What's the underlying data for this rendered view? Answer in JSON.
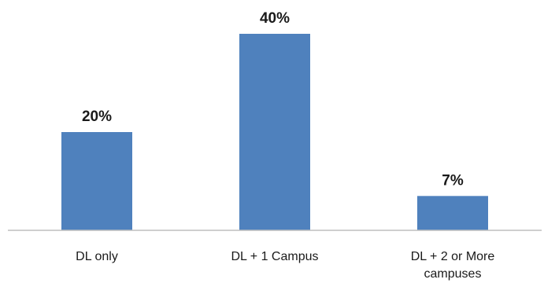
{
  "chart_data": {
    "type": "bar",
    "categories": [
      "DL only",
      "DL + 1 Campus",
      "DL + 2 or More campuses"
    ],
    "category_lines": [
      [
        "DL only"
      ],
      [
        "DL + 1 Campus"
      ],
      [
        "DL + 2 or More",
        "campuses"
      ]
    ],
    "values": [
      20,
      40,
      7
    ],
    "data_labels": [
      "20%",
      "40%",
      "7%"
    ],
    "title": "",
    "xlabel": "",
    "ylabel": "",
    "ylim": [
      0,
      40
    ],
    "grid": false,
    "legend": "none",
    "bar_color": "#4f81bd",
    "axis_color": "#bfbfbf"
  }
}
